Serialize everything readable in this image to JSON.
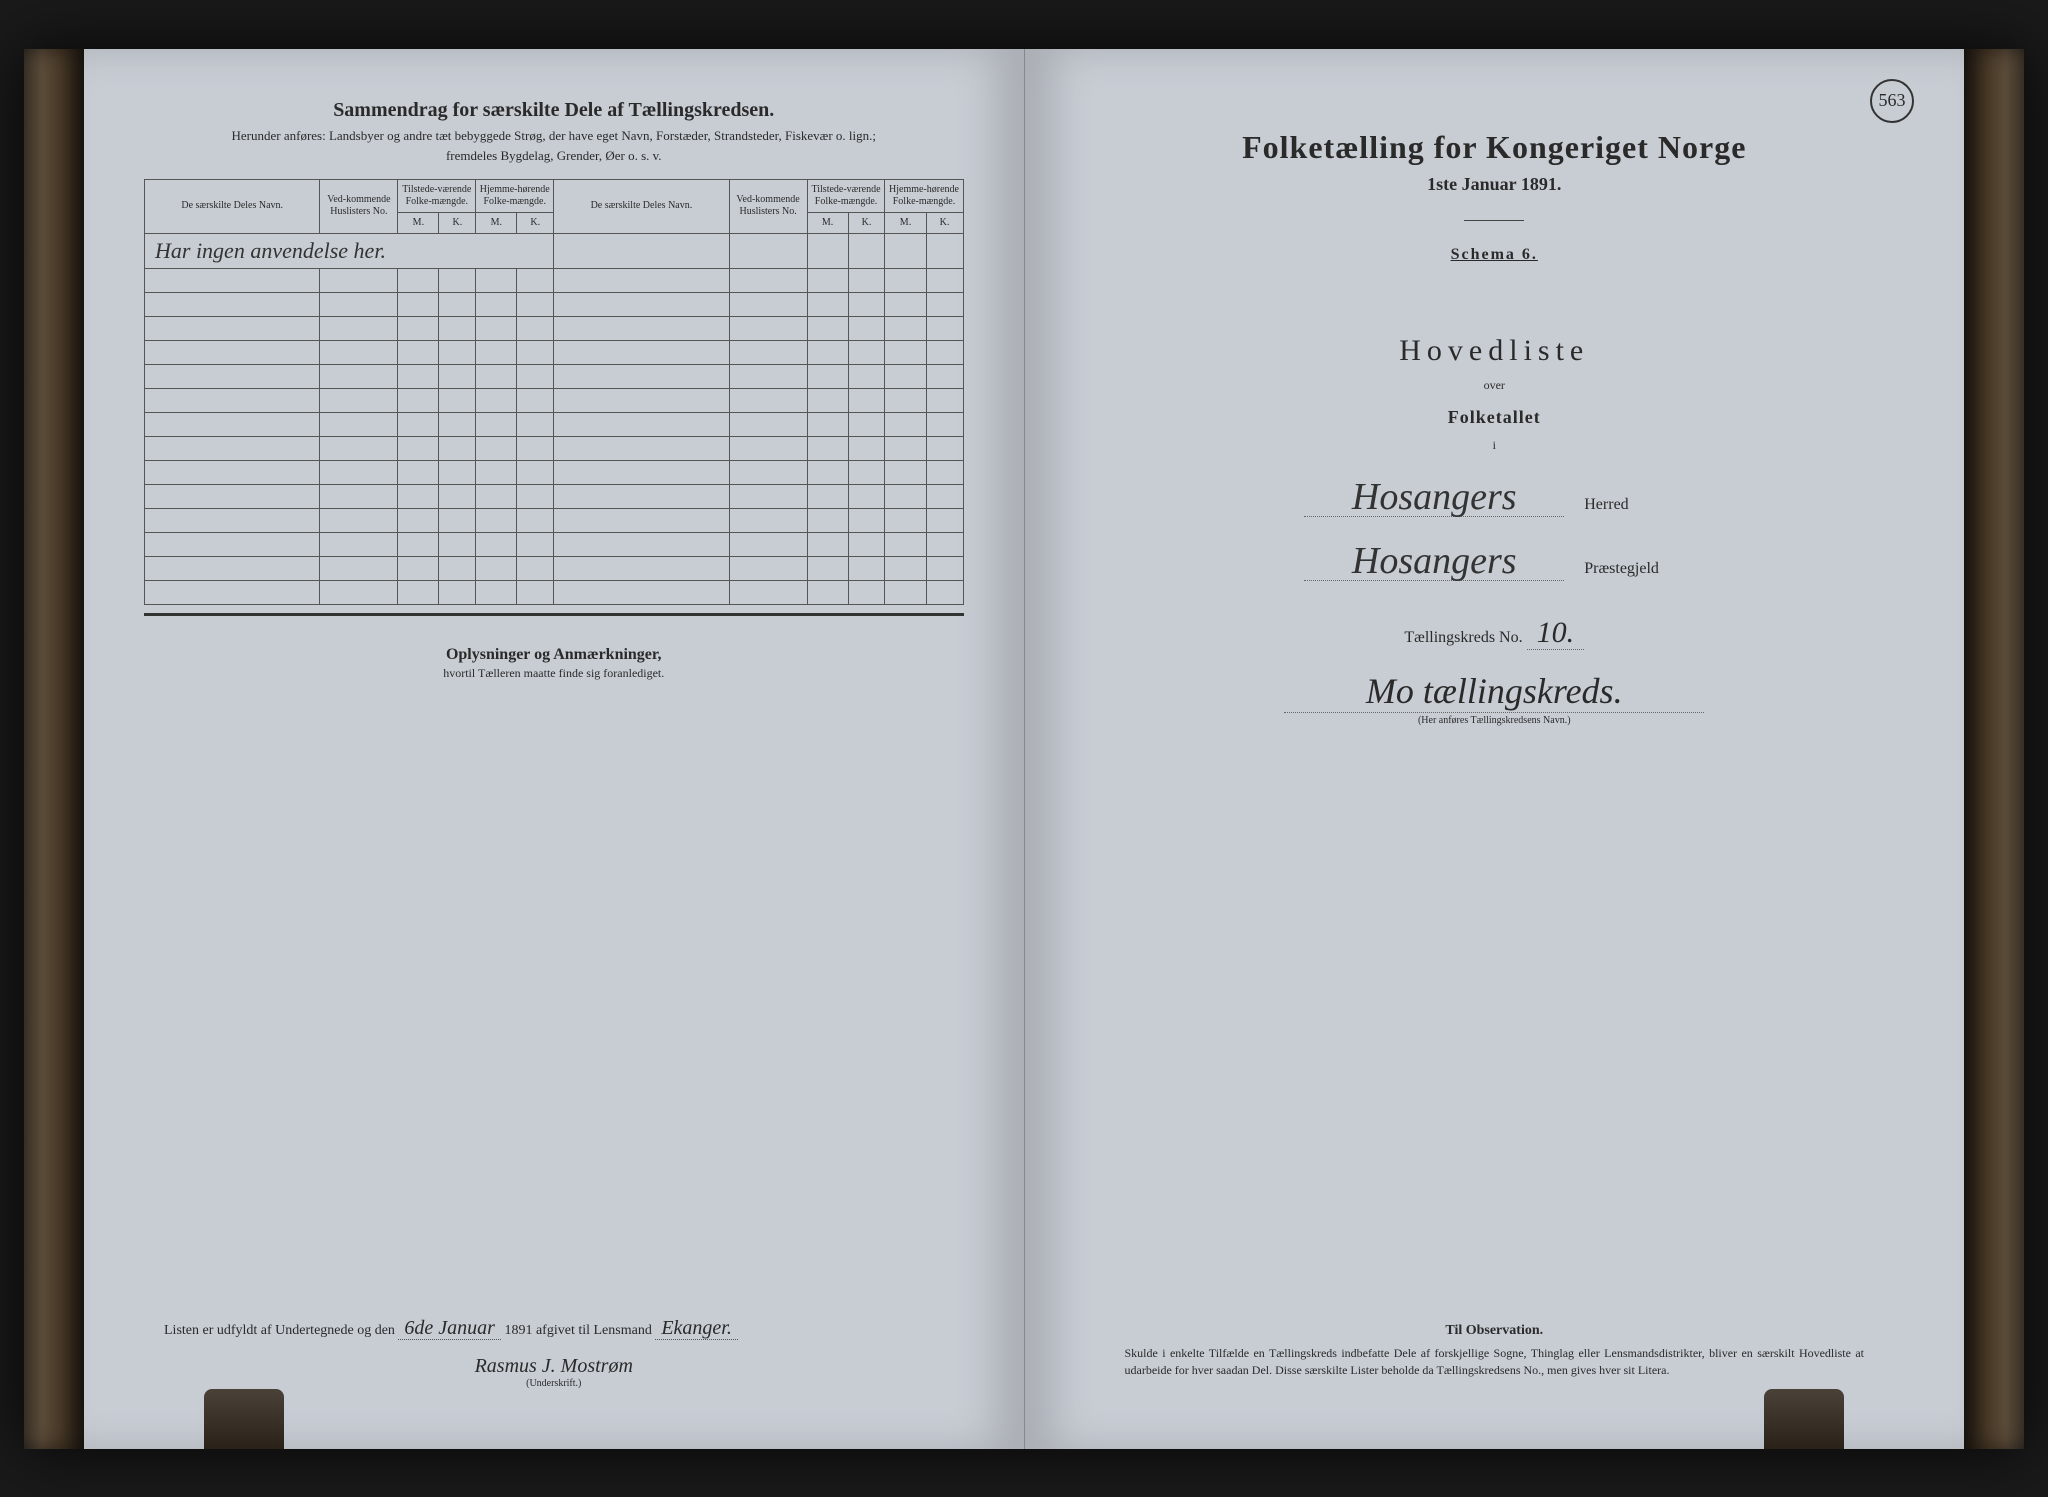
{
  "colors": {
    "page_bg": "#c8cdd4",
    "ink": "#2a2a2a",
    "frame": "#1a1a1a"
  },
  "page_number": "563",
  "left": {
    "title": "Sammendrag for særskilte Dele af Tællingskredsen.",
    "subtitle1": "Herunder anføres: Landsbyer og andre tæt bebyggede Strøg, der have eget Navn, Forstæder, Strandsteder, Fiskevær o. lign.;",
    "subtitle2": "fremdeles Bygdelag, Grender, Øer o. s. v.",
    "table_headers": {
      "col1": "De særskilte Deles Navn.",
      "col2": "Ved-kommende Huslisters No.",
      "col3": "Tilstede-værende Folke-mængde.",
      "col4": "Hjemme-hørende Folke-mængde.",
      "m": "M.",
      "k": "K."
    },
    "handwritten_note": "Har ingen anvendelse her.",
    "empty_rows": 14,
    "oplysninger_title": "Oplysninger og Anmærkninger,",
    "oplysninger_sub": "hvortil Tælleren maatte finde sig foranlediget.",
    "bottom_text_1": "Listen er udfyldt af Undertegnede og den",
    "bottom_fill_date": "6de Januar",
    "bottom_text_2": "1891 afgivet til Lensmand",
    "bottom_fill_name": "Ekanger.",
    "signature": "Rasmus J. Mostrøm",
    "signature_label": "(Underskrift.)"
  },
  "right": {
    "main_title": "Folketælling for Kongeriget Norge",
    "date": "1ste Januar 1891.",
    "schema": "Schema 6.",
    "hovedliste": "Hovedliste",
    "over": "over",
    "folketallet": "Folketallet",
    "i": "i",
    "herred_value": "Hosangers",
    "herred_label": "Herred",
    "praestegjeld_value": "Hosangers",
    "praestegjeld_label": "Præstegjeld",
    "kreds_label": "Tællingskreds No.",
    "kreds_no": "10.",
    "kreds_name": "Mo tællingskreds.",
    "kreds_caption": "(Her anføres Tællingskredsens Navn.)",
    "obs_title": "Til Observation.",
    "obs_text": "Skulde i enkelte Tilfælde en Tællingskreds indbefatte Dele af forskjellige Sogne, Thinglag eller Lensmandsdistrikter, bliver en særskilt Hovedliste at udarbeide for hver saadan Del. Disse særskilte Lister beholde da Tællingskredsens No., men gives hver sit Litera."
  }
}
